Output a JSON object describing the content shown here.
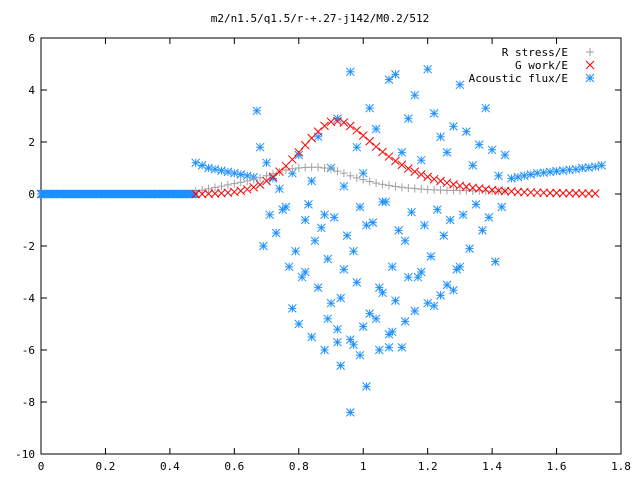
{
  "chart_data": {
    "type": "scatter",
    "title": "m2/n1.5/q1.5/r-+.27-j142/M0.2/512",
    "xlabel": "",
    "ylabel": "",
    "xlim": [
      0,
      1.8
    ],
    "ylim": [
      -10,
      6
    ],
    "x_ticks": [
      "0",
      "0.2",
      "0.4",
      "0.6",
      "0.8",
      "1",
      "1.2",
      "1.4",
      "1.6",
      "1.8"
    ],
    "y_ticks": [
      "6",
      "4",
      "2",
      "0",
      "-2",
      "-4",
      "-6",
      "-8",
      "-10"
    ],
    "x_tick_values": [
      0,
      0.2,
      0.4,
      0.6,
      0.8,
      1.0,
      1.2,
      1.4,
      1.6,
      1.8
    ],
    "y_tick_values": [
      6,
      4,
      2,
      0,
      -2,
      -4,
      -6,
      -8,
      -10
    ],
    "grid": false,
    "legend_position": "top-right",
    "series": [
      {
        "name": "R stress/E",
        "marker": "plus",
        "color": "#a0a0a0",
        "x": [
          0.48,
          0.5,
          0.52,
          0.54,
          0.56,
          0.58,
          0.6,
          0.62,
          0.64,
          0.66,
          0.68,
          0.7,
          0.72,
          0.74,
          0.76,
          0.78,
          0.8,
          0.82,
          0.84,
          0.86,
          0.88,
          0.9,
          0.92,
          0.94,
          0.96,
          0.98,
          1.0,
          1.02,
          1.04,
          1.06,
          1.08,
          1.1,
          1.12,
          1.14,
          1.16,
          1.18,
          1.2,
          1.22,
          1.24,
          1.26,
          1.28,
          1.3,
          1.32,
          1.34,
          1.36,
          1.38,
          1.4,
          1.42,
          1.44
        ],
        "y": [
          0.1,
          0.15,
          0.2,
          0.25,
          0.3,
          0.35,
          0.4,
          0.45,
          0.5,
          0.55,
          0.62,
          0.7,
          0.78,
          0.85,
          0.92,
          0.97,
          1.0,
          1.02,
          1.03,
          1.03,
          1.0,
          0.95,
          0.88,
          0.8,
          0.7,
          0.62,
          0.55,
          0.48,
          0.42,
          0.37,
          0.33,
          0.29,
          0.26,
          0.23,
          0.21,
          0.19,
          0.17,
          0.16,
          0.15,
          0.14,
          0.14,
          0.13,
          0.13,
          0.12,
          0.12,
          0.12,
          0.11,
          0.11,
          0.11
        ]
      },
      {
        "name": "G work/E",
        "marker": "cross",
        "color": "#ff0000",
        "x": [
          0.48,
          0.5,
          0.52,
          0.54,
          0.56,
          0.58,
          0.6,
          0.62,
          0.64,
          0.66,
          0.68,
          0.7,
          0.72,
          0.74,
          0.76,
          0.78,
          0.8,
          0.82,
          0.84,
          0.86,
          0.88,
          0.9,
          0.92,
          0.94,
          0.96,
          0.98,
          1.0,
          1.02,
          1.04,
          1.06,
          1.08,
          1.1,
          1.12,
          1.14,
          1.16,
          1.18,
          1.2,
          1.22,
          1.24,
          1.26,
          1.28,
          1.3,
          1.32,
          1.34,
          1.36,
          1.38,
          1.4,
          1.42,
          1.44,
          1.46,
          1.48,
          1.5,
          1.52,
          1.54,
          1.56,
          1.58,
          1.6,
          1.62,
          1.64,
          1.66,
          1.68,
          1.7,
          1.72
        ],
        "y": [
          0.0,
          0.0,
          0.01,
          0.02,
          0.03,
          0.05,
          0.08,
          0.12,
          0.18,
          0.26,
          0.36,
          0.5,
          0.66,
          0.86,
          1.08,
          1.33,
          1.6,
          1.88,
          2.15,
          2.4,
          2.62,
          2.78,
          2.8,
          2.75,
          2.62,
          2.45,
          2.25,
          2.03,
          1.82,
          1.62,
          1.44,
          1.27,
          1.12,
          0.98,
          0.86,
          0.75,
          0.66,
          0.57,
          0.5,
          0.43,
          0.37,
          0.32,
          0.28,
          0.24,
          0.21,
          0.18,
          0.15,
          0.13,
          0.11,
          0.1,
          0.08,
          0.07,
          0.06,
          0.05,
          0.05,
          0.04,
          0.04,
          0.03,
          0.03,
          0.03,
          0.02,
          0.02,
          0.02
        ]
      },
      {
        "name": "Acoustic flux/E",
        "marker": "star",
        "color": "#1e90ff",
        "x": [
          0.0,
          0.02,
          0.04,
          0.06,
          0.08,
          0.1,
          0.12,
          0.14,
          0.16,
          0.18,
          0.2,
          0.22,
          0.24,
          0.26,
          0.28,
          0.3,
          0.32,
          0.34,
          0.36,
          0.38,
          0.4,
          0.42,
          0.44,
          0.46,
          0.48,
          0.5,
          0.52,
          0.54,
          0.56,
          0.58,
          0.6,
          0.62,
          0.64,
          0.66,
          1.46,
          1.48,
          1.5,
          1.52,
          1.54,
          1.56,
          1.58,
          1.6,
          1.62,
          1.64,
          1.66,
          1.68,
          1.7,
          1.72,
          1.74,
          0.67,
          0.68,
          0.7,
          0.72,
          0.74,
          0.76,
          0.78,
          0.8,
          0.82,
          0.84,
          0.86,
          0.88,
          0.9,
          0.92,
          0.94,
          0.96,
          0.98,
          1.0,
          1.02,
          1.04,
          1.06,
          1.08,
          1.1,
          1.12,
          1.14,
          1.16,
          1.18,
          1.2,
          1.22,
          1.24,
          1.26,
          1.28,
          1.3,
          1.32,
          1.34,
          1.36,
          1.38,
          1.4,
          1.42,
          1.44,
          0.69,
          0.73,
          0.77,
          0.81,
          0.85,
          0.89,
          0.93,
          0.97,
          1.01,
          1.05,
          1.09,
          1.13,
          1.17,
          1.21,
          1.25,
          1.29,
          1.33,
          1.37,
          1.41,
          0.71,
          0.75,
          0.79,
          0.83,
          0.87,
          0.91,
          0.95,
          0.99,
          1.03,
          1.07,
          1.11,
          1.15,
          1.19,
          1.23,
          1.27,
          1.31,
          1.35,
          1.39,
          1.43,
          0.78,
          0.82,
          0.86,
          0.9,
          0.94,
          0.98,
          1.02,
          1.06,
          1.1,
          1.14,
          1.18,
          1.22,
          1.26,
          1.3,
          0.8,
          0.84,
          0.88,
          0.92,
          0.96,
          1.0,
          1.04,
          1.08,
          1.12,
          1.16,
          1.2,
          1.24,
          1.28,
          0.89,
          0.93,
          0.97,
          1.01,
          1.05,
          1.09,
          1.13,
          0.96,
          0.99,
          0.92,
          1.08
        ],
        "y": [
          0,
          0,
          0,
          0,
          0,
          0,
          0,
          0,
          0,
          0,
          0,
          0,
          0,
          0,
          0,
          0,
          0,
          0,
          0,
          0,
          0,
          0,
          0,
          0,
          1.2,
          1.1,
          1.0,
          0.95,
          0.9,
          0.85,
          0.8,
          0.75,
          0.7,
          0.65,
          0.6,
          0.65,
          0.7,
          0.75,
          0.8,
          0.82,
          0.85,
          0.88,
          0.9,
          0.93,
          0.95,
          1.0,
          1.02,
          1.05,
          1.1,
          3.2,
          1.8,
          1.2,
          0.6,
          0.2,
          -0.5,
          0.8,
          1.5,
          -1.0,
          0.5,
          2.2,
          -0.8,
          1.0,
          2.9,
          0.3,
          4.7,
          1.8,
          0.8,
          3.3,
          2.5,
          -0.3,
          4.4,
          4.6,
          1.6,
          2.9,
          3.8,
          1.3,
          4.8,
          3.1,
          2.2,
          1.6,
          2.6,
          4.2,
          2.4,
          1.1,
          1.9,
          3.3,
          1.7,
          0.7,
          1.5,
          -2.0,
          -1.5,
          -2.8,
          -3.2,
          -1.8,
          -2.5,
          -4.0,
          -2.2,
          -1.2,
          -3.6,
          -2.8,
          -1.8,
          -3.2,
          -2.4,
          -1.6,
          -2.9,
          -2.1,
          -1.4,
          -2.6,
          -0.8,
          -0.6,
          -2.2,
          -0.4,
          -1.3,
          -0.9,
          -1.6,
          -0.5,
          -1.1,
          -0.3,
          -1.4,
          -0.7,
          -1.2,
          -0.6,
          -1.0,
          -0.8,
          -0.4,
          -0.9,
          -0.5,
          -4.4,
          -3.0,
          -3.6,
          -4.2,
          -2.9,
          -3.4,
          -4.6,
          -3.8,
          -4.1,
          -3.2,
          -3.0,
          -4.3,
          -3.5,
          -2.8,
          -5.0,
          -5.5,
          -6.0,
          -5.2,
          -5.6,
          -5.1,
          -4.8,
          -5.4,
          -5.9,
          -4.5,
          -4.2,
          -3.9,
          -3.7,
          -4.8,
          -6.6,
          -5.8,
          -7.4,
          -6.0,
          -5.3,
          -4.9,
          -8.4,
          -6.2,
          -5.7,
          -5.9
        ]
      }
    ]
  }
}
